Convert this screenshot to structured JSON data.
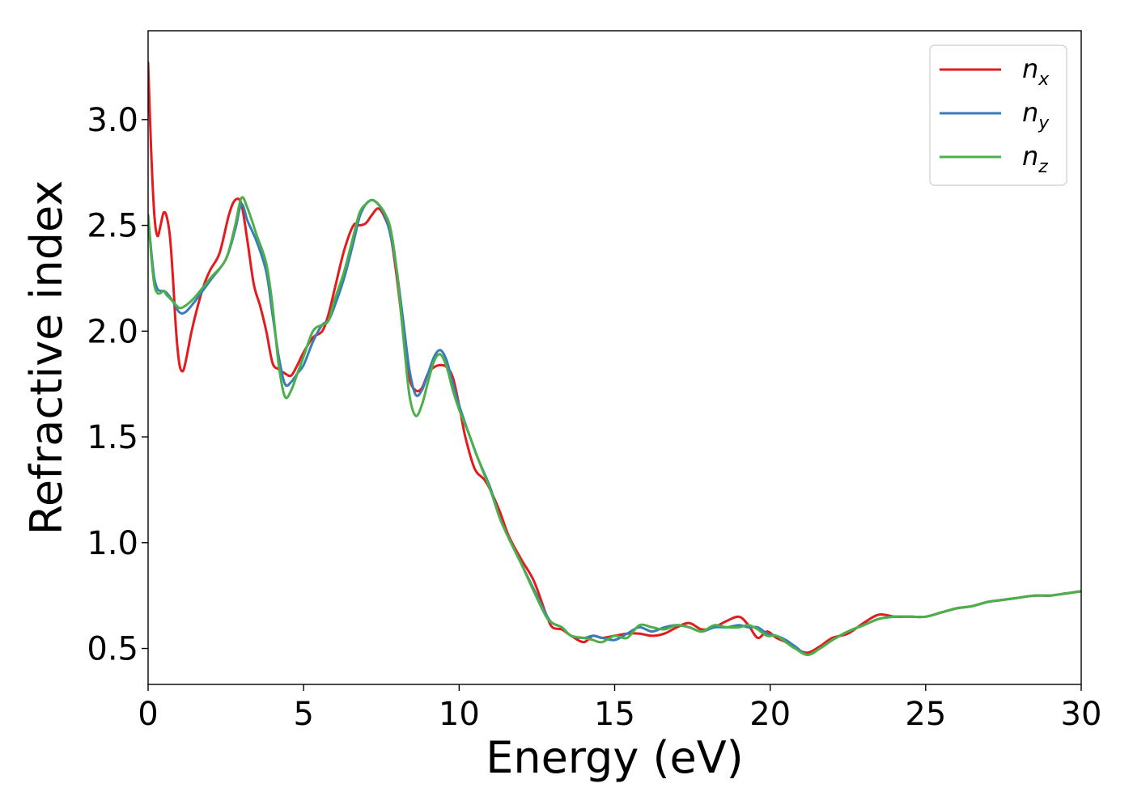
{
  "chart_data": {
    "type": "line",
    "title": "",
    "xlabel": "Energy (eV)",
    "ylabel": "Refractive index",
    "xlim": [
      0,
      30
    ],
    "ylim": [
      0.33,
      3.42
    ],
    "xticks": [
      0,
      5,
      10,
      15,
      20,
      25,
      30
    ],
    "xtick_labels": [
      "0",
      "5",
      "10",
      "15",
      "20",
      "25",
      "30"
    ],
    "yticks": [
      0.5,
      1.0,
      1.5,
      2.0,
      2.5,
      3.0
    ],
    "ytick_labels": [
      "0.5",
      "1.0",
      "1.5",
      "2.0",
      "2.5",
      "3.0"
    ],
    "grid": false,
    "legend_position": "top-right",
    "series": [
      {
        "name": "n_x",
        "label_base": "n",
        "label_sub": "x",
        "color": "#e41a1c",
        "x": [
          0,
          0.1,
          0.2,
          0.3,
          0.4,
          0.5,
          0.6,
          0.7,
          0.8,
          0.9,
          1.0,
          1.1,
          1.2,
          1.4,
          1.6,
          1.8,
          2.0,
          2.3,
          2.6,
          2.8,
          3.0,
          3.2,
          3.4,
          3.6,
          3.8,
          4.0,
          4.2,
          4.4,
          4.6,
          4.8,
          5.0,
          5.3,
          5.6,
          5.8,
          6.0,
          6.3,
          6.6,
          6.8,
          7.0,
          7.2,
          7.4,
          7.6,
          7.8,
          8.0,
          8.2,
          8.4,
          8.6,
          8.8,
          9.0,
          9.2,
          9.4,
          9.6,
          9.8,
          10.0,
          10.2,
          10.5,
          10.8,
          11.0,
          11.3,
          11.6,
          12.0,
          12.4,
          12.8,
          13.0,
          13.3,
          13.6,
          14.0,
          14.3,
          14.6,
          15.0,
          15.4,
          15.8,
          16.2,
          16.6,
          17.0,
          17.4,
          17.8,
          18.2,
          18.6,
          19.0,
          19.3,
          19.6,
          19.9,
          20.2,
          20.5,
          20.8,
          21.2,
          21.6,
          22.0,
          22.5,
          23.0,
          23.5,
          24.0,
          24.5,
          25.0,
          25.5,
          26.0,
          26.5,
          27.0,
          27.5,
          28.0,
          28.5,
          29.0,
          29.5,
          30.0
        ],
        "y": [
          3.27,
          2.85,
          2.55,
          2.45,
          2.5,
          2.56,
          2.54,
          2.45,
          2.25,
          2.0,
          1.85,
          1.81,
          1.85,
          2.0,
          2.12,
          2.22,
          2.29,
          2.37,
          2.55,
          2.62,
          2.6,
          2.42,
          2.22,
          2.12,
          2.0,
          1.85,
          1.82,
          1.8,
          1.79,
          1.84,
          1.9,
          1.97,
          2.0,
          2.08,
          2.2,
          2.38,
          2.5,
          2.5,
          2.51,
          2.55,
          2.58,
          2.54,
          2.45,
          2.25,
          2.0,
          1.78,
          1.72,
          1.73,
          1.8,
          1.83,
          1.84,
          1.83,
          1.78,
          1.65,
          1.5,
          1.35,
          1.3,
          1.25,
          1.15,
          1.03,
          0.92,
          0.82,
          0.66,
          0.6,
          0.59,
          0.56,
          0.53,
          0.56,
          0.55,
          0.56,
          0.57,
          0.57,
          0.56,
          0.57,
          0.6,
          0.62,
          0.59,
          0.6,
          0.63,
          0.65,
          0.61,
          0.55,
          0.58,
          0.55,
          0.53,
          0.5,
          0.48,
          0.51,
          0.55,
          0.57,
          0.62,
          0.66,
          0.65,
          0.65,
          0.65,
          0.67,
          0.69,
          0.7,
          0.72,
          0.73,
          0.74,
          0.75,
          0.75,
          0.76,
          0.77
        ]
      },
      {
        "name": "n_y",
        "label_base": "n",
        "label_sub": "y",
        "color": "#377eb8",
        "x": [
          0,
          0.1,
          0.2,
          0.3,
          0.4,
          0.5,
          0.6,
          0.8,
          1.0,
          1.2,
          1.5,
          2.0,
          2.5,
          2.8,
          3.0,
          3.2,
          3.5,
          3.8,
          4.0,
          4.2,
          4.4,
          4.6,
          4.8,
          5.0,
          5.3,
          5.6,
          5.8,
          6.0,
          6.3,
          6.6,
          6.8,
          7.0,
          7.2,
          7.4,
          7.6,
          7.8,
          8.0,
          8.2,
          8.4,
          8.6,
          8.8,
          9.0,
          9.2,
          9.4,
          9.6,
          9.8,
          10.0,
          10.3,
          10.6,
          11.0,
          11.3,
          11.6,
          12.0,
          12.4,
          12.8,
          13.0,
          13.3,
          13.6,
          14.0,
          14.3,
          14.6,
          15.0,
          15.4,
          15.8,
          16.2,
          16.6,
          17.0,
          17.4,
          17.8,
          18.2,
          18.6,
          19.0,
          19.3,
          19.6,
          19.9,
          20.2,
          20.5,
          20.8,
          21.2,
          21.6,
          22.0,
          22.5,
          23.0,
          23.5,
          24.0,
          24.5,
          25.0,
          25.5,
          26.0,
          26.5,
          27.0,
          27.5,
          28.0,
          28.5,
          29.0,
          29.5,
          30.0
        ],
        "y": [
          2.55,
          2.38,
          2.25,
          2.2,
          2.19,
          2.19,
          2.18,
          2.14,
          2.09,
          2.09,
          2.14,
          2.24,
          2.34,
          2.48,
          2.6,
          2.52,
          2.42,
          2.28,
          2.08,
          1.88,
          1.75,
          1.76,
          1.8,
          1.84,
          1.95,
          2.03,
          2.05,
          2.12,
          2.25,
          2.42,
          2.54,
          2.6,
          2.62,
          2.6,
          2.55,
          2.45,
          2.28,
          2.05,
          1.82,
          1.7,
          1.72,
          1.8,
          1.88,
          1.91,
          1.86,
          1.75,
          1.65,
          1.52,
          1.4,
          1.26,
          1.12,
          1.02,
          0.9,
          0.78,
          0.66,
          0.62,
          0.6,
          0.56,
          0.55,
          0.56,
          0.55,
          0.54,
          0.57,
          0.6,
          0.58,
          0.6,
          0.61,
          0.6,
          0.58,
          0.6,
          0.6,
          0.61,
          0.6,
          0.6,
          0.57,
          0.56,
          0.54,
          0.51,
          0.47,
          0.5,
          0.54,
          0.58,
          0.61,
          0.64,
          0.65,
          0.65,
          0.65,
          0.67,
          0.69,
          0.7,
          0.72,
          0.73,
          0.74,
          0.75,
          0.75,
          0.76,
          0.77
        ]
      },
      {
        "name": "n_z",
        "label_base": "n",
        "label_sub": "z",
        "color": "#4daf4a",
        "x": [
          0,
          0.1,
          0.2,
          0.3,
          0.4,
          0.5,
          0.6,
          0.8,
          1.0,
          1.2,
          1.5,
          2.0,
          2.5,
          2.8,
          3.0,
          3.2,
          3.5,
          3.8,
          4.0,
          4.2,
          4.4,
          4.6,
          4.8,
          5.0,
          5.3,
          5.6,
          5.8,
          6.0,
          6.3,
          6.6,
          6.8,
          7.0,
          7.2,
          7.4,
          7.6,
          7.8,
          8.0,
          8.2,
          8.4,
          8.6,
          8.8,
          9.0,
          9.2,
          9.4,
          9.6,
          9.8,
          10.0,
          10.3,
          10.6,
          11.0,
          11.3,
          11.6,
          12.0,
          12.4,
          12.8,
          13.0,
          13.3,
          13.6,
          14.0,
          14.3,
          14.6,
          15.0,
          15.4,
          15.8,
          16.2,
          16.6,
          17.0,
          17.4,
          17.8,
          18.2,
          18.6,
          19.0,
          19.3,
          19.6,
          19.9,
          20.2,
          20.5,
          20.8,
          21.2,
          21.6,
          22.0,
          22.5,
          23.0,
          23.5,
          24.0,
          24.5,
          25.0,
          25.5,
          26.0,
          26.5,
          27.0,
          27.5,
          28.0,
          28.5,
          29.0,
          29.5,
          30.0
        ],
        "y": [
          2.55,
          2.36,
          2.22,
          2.18,
          2.18,
          2.19,
          2.17,
          2.14,
          2.11,
          2.12,
          2.16,
          2.25,
          2.34,
          2.5,
          2.63,
          2.58,
          2.45,
          2.32,
          2.12,
          1.84,
          1.69,
          1.72,
          1.8,
          1.88,
          2.0,
          2.03,
          2.05,
          2.15,
          2.28,
          2.45,
          2.56,
          2.6,
          2.62,
          2.6,
          2.56,
          2.48,
          2.28,
          1.98,
          1.7,
          1.6,
          1.65,
          1.76,
          1.86,
          1.89,
          1.83,
          1.72,
          1.63,
          1.52,
          1.4,
          1.25,
          1.12,
          1.02,
          0.9,
          0.77,
          0.65,
          0.62,
          0.6,
          0.56,
          0.55,
          0.54,
          0.53,
          0.56,
          0.55,
          0.61,
          0.6,
          0.59,
          0.61,
          0.6,
          0.58,
          0.61,
          0.6,
          0.6,
          0.61,
          0.59,
          0.56,
          0.56,
          0.53,
          0.5,
          0.47,
          0.5,
          0.54,
          0.58,
          0.61,
          0.64,
          0.65,
          0.65,
          0.65,
          0.67,
          0.69,
          0.7,
          0.72,
          0.73,
          0.74,
          0.75,
          0.75,
          0.76,
          0.77
        ]
      }
    ]
  }
}
